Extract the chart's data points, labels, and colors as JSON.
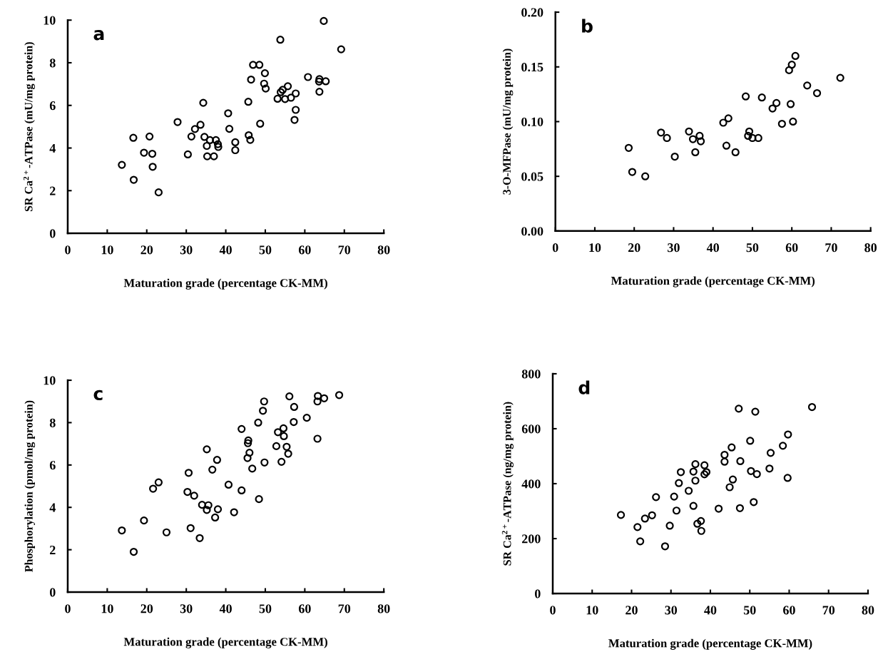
{
  "chart_data": [
    {
      "type": "scatter",
      "title": "a",
      "xlabel": "Maturation grade (percentage CK-MM)",
      "ylabel": "SR Ca$^{2+}$-ATPase (mU/mg protein)",
      "xlim": [
        0,
        80
      ],
      "xticks": [
        0,
        10,
        20,
        30,
        40,
        50,
        60,
        70,
        80
      ],
      "ylim": [
        0,
        10
      ],
      "yticks": [
        0,
        2,
        4,
        6,
        8,
        10
      ],
      "marker": "circle",
      "grid": false,
      "series": [
        {
          "color": "#000000",
          "x": [
            13.7,
            16.6,
            16.7,
            19.3,
            20.7,
            21.4,
            21.5,
            23.0,
            27.8,
            30.4,
            31.3,
            32.2,
            33.6,
            34.3,
            34.6,
            35.2,
            36.0,
            35.3,
            37.0,
            37.5,
            38.0,
            38.1,
            40.6,
            40.9,
            42.4,
            42.4,
            45.7,
            45.8,
            46.2,
            46.4,
            46.9,
            48.5,
            48.7,
            49.9,
            49.7,
            50.1,
            53.1,
            53.8,
            53.9,
            54.4,
            55.0,
            55.7,
            56.5,
            57.7,
            57.7,
            57.4,
            60.8,
            63.7,
            63.6,
            63.7,
            65.3,
            64.8,
            69.2
          ],
          "values": [
            3.21,
            4.48,
            2.51,
            3.78,
            4.54,
            3.73,
            3.12,
            1.92,
            5.22,
            3.7,
            4.54,
            4.89,
            5.09,
            6.12,
            4.52,
            4.1,
            4.37,
            3.61,
            3.61,
            4.37,
            4.18,
            4.05,
            5.63,
            4.9,
            4.27,
            3.9,
            6.17,
            4.6,
            4.38,
            7.21,
            7.9,
            7.9,
            5.14,
            7.51,
            7.02,
            6.79,
            6.31,
            9.08,
            6.62,
            6.73,
            6.3,
            6.9,
            6.36,
            6.56,
            5.79,
            5.32,
            7.33,
            6.64,
            7.12,
            7.23,
            7.13,
            9.96,
            8.63
          ]
        }
      ]
    },
    {
      "type": "scatter",
      "title": "b",
      "xlabel": "Maturation grade (percentage CK-MM)",
      "ylabel": "3-O-MFPase (mU/mg protein)",
      "xlim": [
        0,
        80
      ],
      "xticks": [
        0,
        10,
        20,
        30,
        40,
        50,
        60,
        70,
        80
      ],
      "ylim": [
        0,
        0.2
      ],
      "yticks": [
        {
          "value": 0,
          "label": "0.00"
        },
        {
          "value": 0.05,
          "label": "0.05"
        },
        {
          "value": 0.1,
          "label": "0.10"
        },
        {
          "value": 0.15,
          "label": "0.15"
        },
        {
          "value": 0.2,
          "label": "0.20"
        }
      ],
      "marker": "circle",
      "grid": false,
      "series": [
        {
          "color": "#000000",
          "x": [
            18.6,
            19.5,
            22.8,
            26.8,
            28.3,
            30.3,
            33.9,
            34.9,
            35.5,
            36.6,
            36.9,
            42.6,
            43.9,
            43.4,
            45.7,
            48.3,
            49.2,
            48.9,
            50.0,
            51.5,
            52.4,
            55.1,
            56.1,
            57.5,
            59.3,
            60.0,
            60.9,
            59.7,
            60.3,
            63.9,
            66.4,
            72.3
          ],
          "values": [
            0.076,
            0.054,
            0.05,
            0.09,
            0.085,
            0.068,
            0.091,
            0.084,
            0.072,
            0.087,
            0.082,
            0.099,
            0.103,
            0.078,
            0.072,
            0.123,
            0.091,
            0.087,
            0.085,
            0.085,
            0.122,
            0.112,
            0.117,
            0.098,
            0.147,
            0.152,
            0.16,
            0.116,
            0.1,
            0.133,
            0.126,
            0.14
          ]
        }
      ]
    },
    {
      "type": "scatter",
      "title": "c",
      "xlabel": "Maturation grade (percentage CK-MM)",
      "ylabel": "Phosphorylation (pmol/mg protein)",
      "xlim": [
        0,
        80
      ],
      "xticks": [
        0,
        10,
        20,
        30,
        40,
        50,
        60,
        70,
        80
      ],
      "ylim": [
        0,
        10
      ],
      "yticks": [
        0,
        2,
        4,
        6,
        8,
        10
      ],
      "marker": "circle",
      "grid": false,
      "series": [
        {
          "color": "#000000",
          "x": [
            13.7,
            16.7,
            19.3,
            21.6,
            23.0,
            25.0,
            30.3,
            30.6,
            31.1,
            32.0,
            33.4,
            34.0,
            35.2,
            35.6,
            35.2,
            36.6,
            37.3,
            37.8,
            38.0,
            40.7,
            42.1,
            44.0,
            44.0,
            45.7,
            45.6,
            46.0,
            45.5,
            46.7,
            48.2,
            48.4,
            49.4,
            49.7,
            49.8,
            52.8,
            53.2,
            54.6,
            54.7,
            54.1,
            55.4,
            55.8,
            56.1,
            57.3,
            57.2,
            60.5,
            63.2,
            63.2,
            63.3,
            64.9,
            68.7
          ],
          "values": [
            2.91,
            1.9,
            3.38,
            4.88,
            5.18,
            2.82,
            4.73,
            5.63,
            3.02,
            4.55,
            2.55,
            4.12,
            6.74,
            4.1,
            3.88,
            5.78,
            3.52,
            6.24,
            3.91,
            5.07,
            3.77,
            4.8,
            7.7,
            7.16,
            7.03,
            6.58,
            6.33,
            5.83,
            8.0,
            4.39,
            8.56,
            9.0,
            6.12,
            6.89,
            7.55,
            7.73,
            7.36,
            6.15,
            6.86,
            6.53,
            9.24,
            8.74,
            8.03,
            8.23,
            7.24,
            9.0,
            9.26,
            9.15,
            9.3
          ]
        }
      ]
    },
    {
      "type": "scatter",
      "title": "d",
      "xlabel": "Maturation grade (percentage CK-MM)",
      "ylabel": "SR Ca$^{2+}$-ATPase (ng/mg protein)",
      "xlim": [
        0,
        80
      ],
      "xticks": [
        0,
        10,
        20,
        30,
        40,
        50,
        60,
        70,
        80
      ],
      "ylim": [
        0,
        800
      ],
      "yticks": [
        0,
        200,
        400,
        600,
        800
      ],
      "marker": "circle",
      "grid": false,
      "series": [
        {
          "color": "#000000",
          "x": [
            17.3,
            21.5,
            22.2,
            23.4,
            25.2,
            26.2,
            28.5,
            29.7,
            30.8,
            31.4,
            32.0,
            32.5,
            34.5,
            35.7,
            35.7,
            36.2,
            36.2,
            36.7,
            37.6,
            37.7,
            38.5,
            39.0,
            38.5,
            42.1,
            43.6,
            43.6,
            44.9,
            45.4,
            45.7,
            47.2,
            47.6,
            47.5,
            50.1,
            50.3,
            51.4,
            51.0,
            51.8,
            55.0,
            55.3,
            58.4,
            59.7,
            59.6,
            65.8
          ],
          "values": [
            286,
            242,
            190,
            273,
            285,
            351,
            172,
            247,
            353,
            302,
            402,
            442,
            374,
            319,
            444,
            471,
            411,
            254,
            264,
            228,
            467,
            442,
            434,
            309,
            505,
            480,
            387,
            532,
            415,
            673,
            482,
            311,
            556,
            446,
            662,
            333,
            435,
            455,
            512,
            538,
            579,
            421,
            679
          ]
        }
      ]
    }
  ]
}
